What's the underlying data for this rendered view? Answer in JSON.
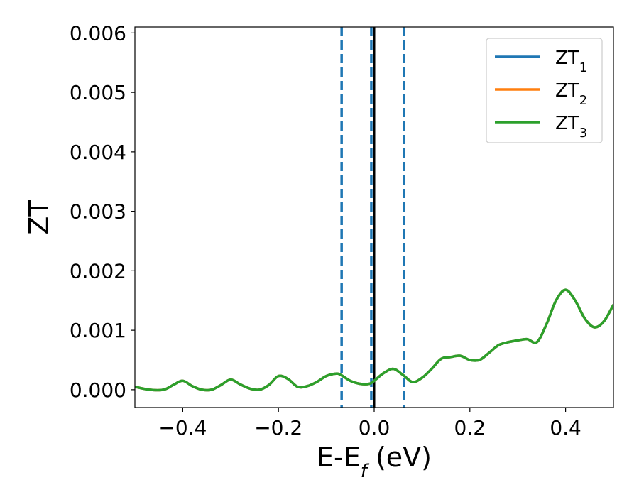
{
  "chart_data": {
    "type": "line",
    "xlabel": {
      "main": "E-E",
      "sub": "f",
      "tail": " (eV)"
    },
    "ylabel": "ZT",
    "xlim": [
      -0.5,
      0.5
    ],
    "ylim": [
      -0.0003,
      0.0061
    ],
    "xticks": [
      -0.4,
      -0.2,
      0.0,
      0.2,
      0.4
    ],
    "xtick_labels": [
      "−0.4",
      "−0.2",
      "0.0",
      "0.2",
      "0.4"
    ],
    "yticks": [
      0.0,
      0.001,
      0.002,
      0.003,
      0.004,
      0.005,
      0.006
    ],
    "ytick_labels": [
      "0.000",
      "0.001",
      "0.002",
      "0.003",
      "0.004",
      "0.005",
      "0.006"
    ],
    "grid": false,
    "legend_position": "top-right",
    "vertical_lines": [
      {
        "x": -0.068,
        "style": "dashed",
        "color": "#1f77b4"
      },
      {
        "x": -0.006,
        "style": "dashed",
        "color": "#1f77b4"
      },
      {
        "x": 0.0,
        "style": "solid",
        "color": "#000000"
      },
      {
        "x": 0.062,
        "style": "dashed",
        "color": "#1f77b4"
      }
    ],
    "x": [
      -0.5,
      -0.47,
      -0.44,
      -0.42,
      -0.4,
      -0.38,
      -0.36,
      -0.34,
      -0.32,
      -0.3,
      -0.28,
      -0.26,
      -0.24,
      -0.22,
      -0.2,
      -0.18,
      -0.16,
      -0.14,
      -0.12,
      -0.1,
      -0.08,
      -0.07,
      -0.05,
      -0.03,
      -0.01,
      0.0,
      0.02,
      0.04,
      0.06,
      0.08,
      0.1,
      0.12,
      0.14,
      0.16,
      0.18,
      0.2,
      0.22,
      0.24,
      0.26,
      0.28,
      0.3,
      0.32,
      0.34,
      0.36,
      0.38,
      0.4,
      0.42,
      0.44,
      0.46,
      0.48,
      0.5
    ],
    "series": [
      {
        "name": "ZT",
        "sub": "1",
        "color": "#1f77b4",
        "values": [
          5e-05,
          0.0,
          0.0,
          8e-05,
          0.00015,
          6e-05,
          0.0,
          0.0,
          8e-05,
          0.00017,
          9e-05,
          2e-05,
          0.0,
          8e-05,
          0.00023,
          0.00018,
          5e-05,
          6e-05,
          0.00013,
          0.00023,
          0.00027,
          0.00025,
          0.00015,
          0.0001,
          0.0001,
          0.00015,
          0.00028,
          0.00035,
          0.00025,
          0.00013,
          0.0002,
          0.00035,
          0.00052,
          0.00055,
          0.00057,
          0.0005,
          0.0005,
          0.00062,
          0.00075,
          0.0008,
          0.00083,
          0.00085,
          0.0008,
          0.0011,
          0.0015,
          0.00168,
          0.0015,
          0.0012,
          0.00105,
          0.00115,
          0.00143
        ]
      },
      {
        "name": "ZT",
        "sub": "2",
        "color": "#ff7f0e",
        "values": [
          5e-05,
          0.0,
          0.0,
          8e-05,
          0.00015,
          6e-05,
          0.0,
          0.0,
          8e-05,
          0.00017,
          9e-05,
          2e-05,
          0.0,
          8e-05,
          0.00023,
          0.00018,
          5e-05,
          6e-05,
          0.00013,
          0.00023,
          0.00027,
          0.00025,
          0.00015,
          0.0001,
          0.0001,
          0.00015,
          0.00028,
          0.00035,
          0.00025,
          0.00013,
          0.0002,
          0.00035,
          0.00052,
          0.00055,
          0.00057,
          0.0005,
          0.0005,
          0.00062,
          0.00075,
          0.0008,
          0.00083,
          0.00085,
          0.0008,
          0.0011,
          0.0015,
          0.00168,
          0.0015,
          0.0012,
          0.00105,
          0.00115,
          0.00143
        ]
      },
      {
        "name": "ZT",
        "sub": "3",
        "color": "#2ca02c",
        "values": [
          5e-05,
          0.0,
          0.0,
          8e-05,
          0.00015,
          6e-05,
          0.0,
          0.0,
          8e-05,
          0.00017,
          9e-05,
          2e-05,
          0.0,
          8e-05,
          0.00023,
          0.00018,
          5e-05,
          6e-05,
          0.00013,
          0.00023,
          0.00027,
          0.00025,
          0.00015,
          0.0001,
          0.0001,
          0.00015,
          0.00028,
          0.00035,
          0.00025,
          0.00013,
          0.0002,
          0.00035,
          0.00052,
          0.00055,
          0.00057,
          0.0005,
          0.0005,
          0.00062,
          0.00075,
          0.0008,
          0.00083,
          0.00085,
          0.0008,
          0.0011,
          0.0015,
          0.00168,
          0.0015,
          0.0012,
          0.00105,
          0.00115,
          0.00143
        ]
      }
    ]
  }
}
